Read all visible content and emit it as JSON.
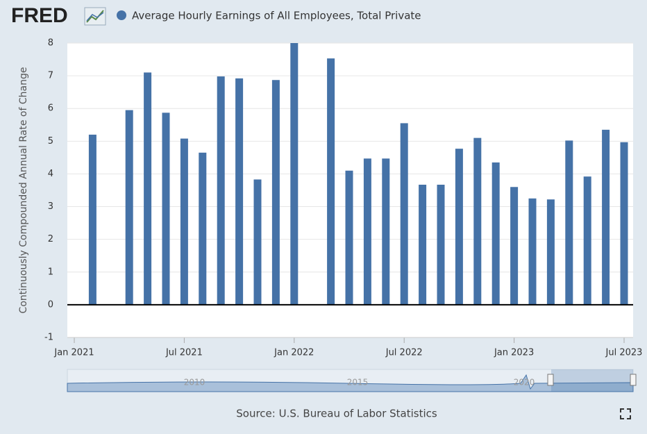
{
  "header": {
    "logo": "FRED"
  },
  "chart_data": {
    "type": "bar",
    "title": "Average Hourly Earnings of All Employees, Total Private",
    "y_label": "Continuously Compounded Annual Rate of Change",
    "source": "Source: U.S. Bureau of Labor Statistics",
    "color": "#4572a7",
    "x": [
      "2021-01",
      "2021-02",
      "2021-03",
      "2021-04",
      "2021-05",
      "2021-06",
      "2021-07",
      "2021-08",
      "2021-09",
      "2021-10",
      "2021-11",
      "2021-12",
      "2022-01",
      "2022-02",
      "2022-03",
      "2022-04",
      "2022-05",
      "2022-06",
      "2022-07",
      "2022-08",
      "2022-09",
      "2022-10",
      "2022-11",
      "2022-12",
      "2023-01",
      "2023-02",
      "2023-03",
      "2023-04",
      "2023-05",
      "2023-06",
      "2023-07"
    ],
    "values": [
      null,
      5.2,
      null,
      5.95,
      7.1,
      5.87,
      5.08,
      4.65,
      6.98,
      6.92,
      3.83,
      6.87,
      8.0,
      null,
      7.53,
      4.1,
      4.47,
      4.47,
      5.55,
      3.67,
      3.67,
      4.77,
      5.1,
      4.35,
      3.6,
      3.25,
      3.22,
      5.02,
      3.92,
      5.35,
      4.97
    ],
    "xticks": [
      {
        "value": "2021-01",
        "label": "Jan 2021"
      },
      {
        "value": "2021-07",
        "label": "Jul 2021"
      },
      {
        "value": "2022-01",
        "label": "Jan 2022"
      },
      {
        "value": "2022-07",
        "label": "Jul 2022"
      },
      {
        "value": "2023-01",
        "label": "Jan 2023"
      },
      {
        "value": "2023-07",
        "label": "Jul 2023"
      }
    ],
    "ylim": [
      -1,
      8
    ],
    "yticks": [
      -1,
      0,
      1,
      2,
      3,
      4,
      5,
      6,
      7,
      8
    ],
    "grid": true,
    "navigator_labels": [
      "2010",
      "2015",
      "2020"
    ]
  }
}
